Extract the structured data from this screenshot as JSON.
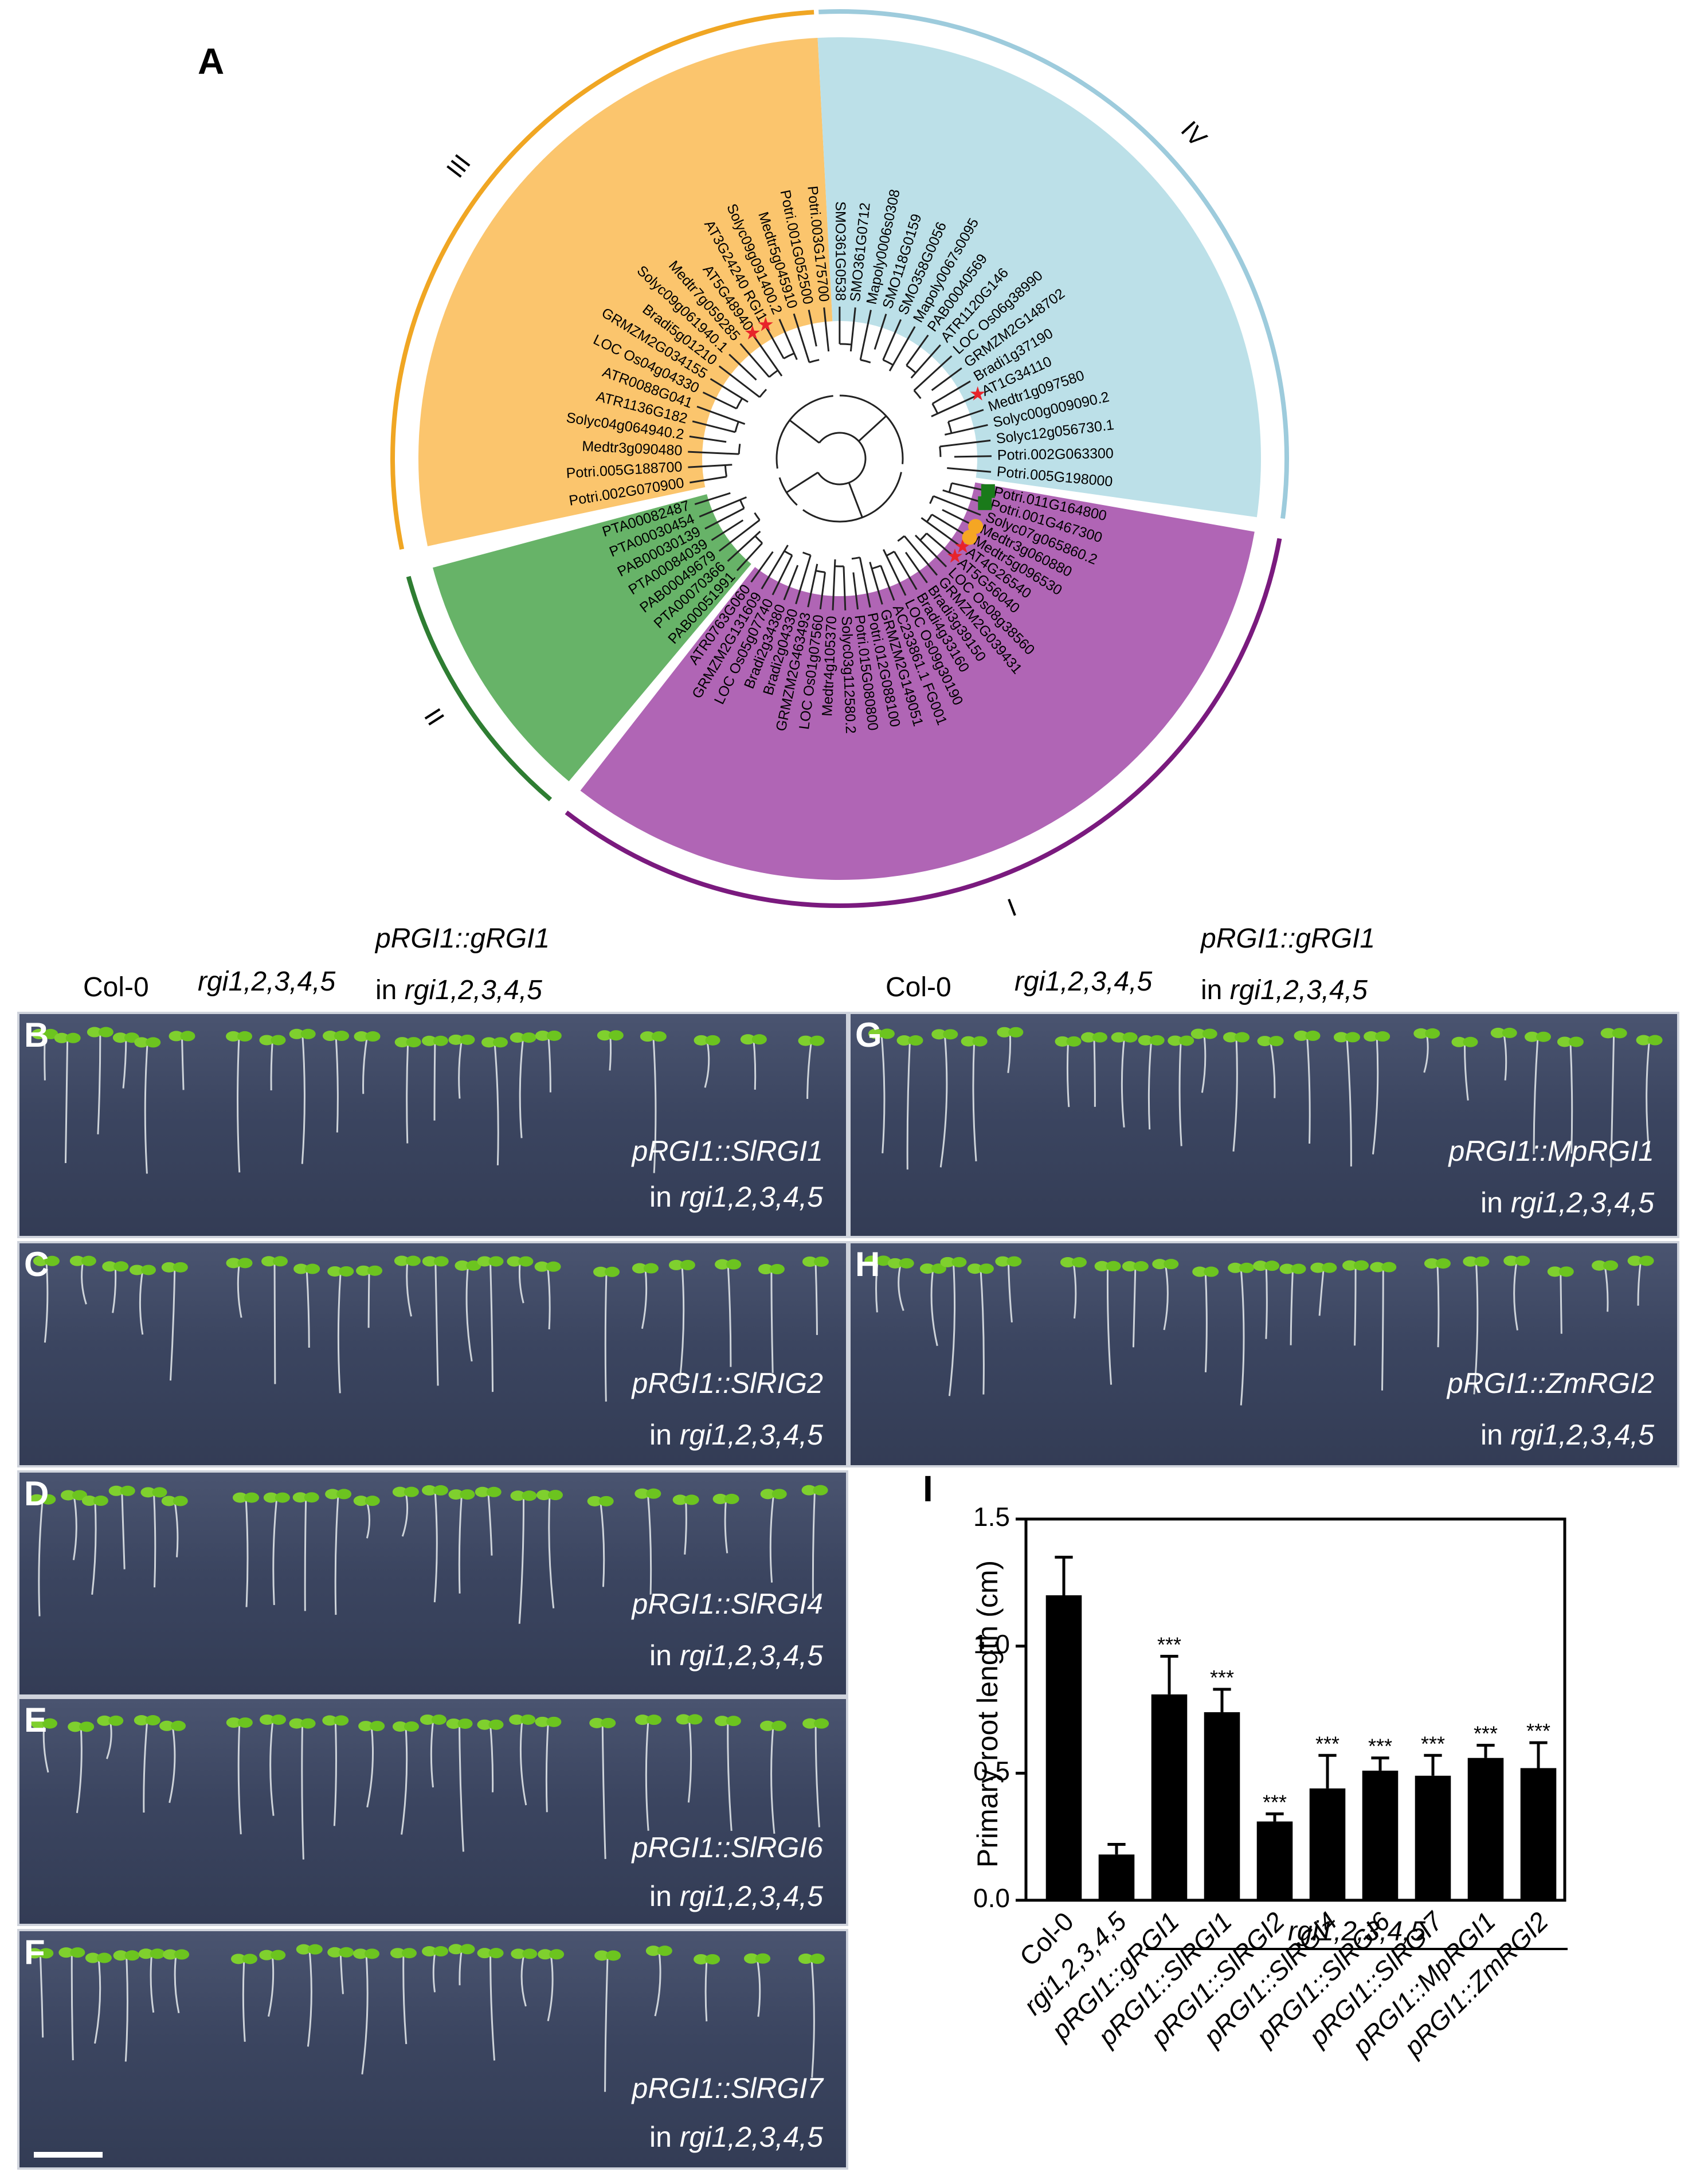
{
  "panel_A": {
    "letter": "A",
    "clades": [
      "I",
      "II",
      "III",
      "IV"
    ],
    "colors": {
      "I": "#b065b5",
      "II": "#67b368",
      "III": "#fbc56d",
      "IV": "#bce0e8",
      "I_arc": "#7a1a7e",
      "II_arc": "#2e7d32",
      "III_arc": "#f0a623",
      "IV_arc": "#9dcbdc",
      "star": "#e8232a",
      "square": "#1a7a1a",
      "circle": "#f5a623"
    },
    "leaves_III": [
      "Potri.002G070900",
      "Potri.005G188700",
      "Medtr3g090480",
      "Solyc04g064940.2",
      "ATR1136G182",
      "ATR0088G041",
      "LOC Os04g04330",
      "GRMZM2G034155",
      "Bradi5g01210",
      "Solyc09g061940.1",
      "Medtr7g059285",
      "AT5G48940",
      "AT3G24240 RGI1",
      "Solyc09g091400.2",
      "Medtr5g045910",
      "Potri.001G052500",
      "Potri.003G175700"
    ],
    "leaves_IV": [
      "SMO361G0538",
      "SMO361G0712",
      "Mapoly0006s0308",
      "SMO118G0159",
      "SMO358G0056",
      "Mapoly0067s0095",
      "PAB00040569",
      "ATR1120G146",
      "LOC Os06g38990",
      "GRMZM2G148702",
      "Bradi1g37190",
      "AT1G34110",
      "Medtr1g097580",
      "Solyc00g009090.2",
      "Solyc12g056730.1",
      "Potri.002G063300",
      "Potri.005G198000"
    ],
    "leaves_I": [
      "Potri.011G164800",
      "Potri.001G467300",
      "Solyc07g065860.2",
      "Medtr3g060880",
      "Medtr5g096530",
      "AT4G26540",
      "AT5G56040",
      "LOC Os08g38560",
      "GRMZM2G039431",
      "Bradi3g39150",
      "Bradi4g33160",
      "LOC Os09g30190",
      "AC233861.1 FG001",
      "GRMZM2G149051",
      "Potri.012G088100",
      "Potri.015G080800",
      "Solyc03g112580.2",
      "Medtr4g105370",
      "LOC Os01g07560",
      "GRMZM2G463493",
      "Bradi2g04330",
      "Bradi2g34380",
      "LOC Os05g07740",
      "GRMZM2G131609",
      "ATR0763G060"
    ],
    "leaves_II": [
      "PAB00051991",
      "PTA00070366",
      "PAB00049679",
      "PTA00084039",
      "PAB00030139",
      "PTA00030454",
      "PTA00082487"
    ]
  },
  "col_headers": {
    "left": {
      "c1": "Col-0",
      "c2": "rgi1,2,3,4,5",
      "c3a": "pRGI1::gRGI1",
      "c3b_pre": "in ",
      "c3b": "rgi1,2,3,4,5"
    },
    "right": {
      "c1": "Col-0",
      "c2": "rgi1,2,3,4,5",
      "c3a": "pRGI1::gRGI1",
      "c3b_pre": "in ",
      "c3b": "rgi1,2,3,4,5"
    }
  },
  "plates": {
    "B": {
      "letter": "B",
      "construct": "pRGI1::SlRGI1",
      "bg_pre": "in ",
      "bg": "rgi1,2,3,4,5"
    },
    "C": {
      "letter": "C",
      "construct": "pRGI1::SlRIG2",
      "bg_pre": "in ",
      "bg": "rgi1,2,3,4,5"
    },
    "D": {
      "letter": "D",
      "construct": "pRGI1::SlRGI4",
      "bg_pre": "in ",
      "bg": "rgi1,2,3,4,5"
    },
    "E": {
      "letter": "E",
      "construct": "pRGI1::SlRGI6",
      "bg_pre": "in ",
      "bg": "rgi1,2,3,4,5"
    },
    "F": {
      "letter": "F",
      "construct": "pRGI1::SlRGI7",
      "bg_pre": "in ",
      "bg": "rgi1,2,3,4,5"
    },
    "G": {
      "letter": "G",
      "construct": "pRGI1::MpRGI1",
      "bg_pre": "in ",
      "bg": "rgi1,2,3,4,5"
    },
    "H": {
      "letter": "H",
      "construct": "pRGI1::ZmRGI2",
      "bg_pre": "in ",
      "bg": "rgi1,2,3,4,5"
    }
  },
  "chart_data": {
    "type": "bar",
    "panel_letter": "I",
    "title": "",
    "ylabel": "Primary root length (cm)",
    "xlabel": "",
    "ylim": [
      0,
      1.5
    ],
    "yticks": [
      "0.0",
      "0.5",
      "1.0",
      "1.5"
    ],
    "categories": [
      "Col-0",
      "rgi1,2,3,4,5",
      "pRGI1::gRGI1",
      "pRGI1::SlRGI1",
      "pRGI1::SlRGI2",
      "pRGI1::SlRGI4",
      "pRGI1::SlRGI6",
      "pRGI1::SlRGI7",
      "pRGI1::MpRGI1",
      "pRGI1::ZmRGI2"
    ],
    "values": [
      1.2,
      0.18,
      0.81,
      0.74,
      0.31,
      0.44,
      0.51,
      0.49,
      0.56,
      0.52
    ],
    "errors": [
      0.15,
      0.04,
      0.15,
      0.09,
      0.03,
      0.13,
      0.05,
      0.08,
      0.05,
      0.1
    ],
    "significance": [
      "",
      "",
      "***",
      "***",
      "***",
      "***",
      "***",
      "***",
      "***",
      "***"
    ],
    "group_label": "rgi1,2,3,4,5",
    "bar_color": "#000000"
  },
  "scale_bar_color": "#ffffff"
}
